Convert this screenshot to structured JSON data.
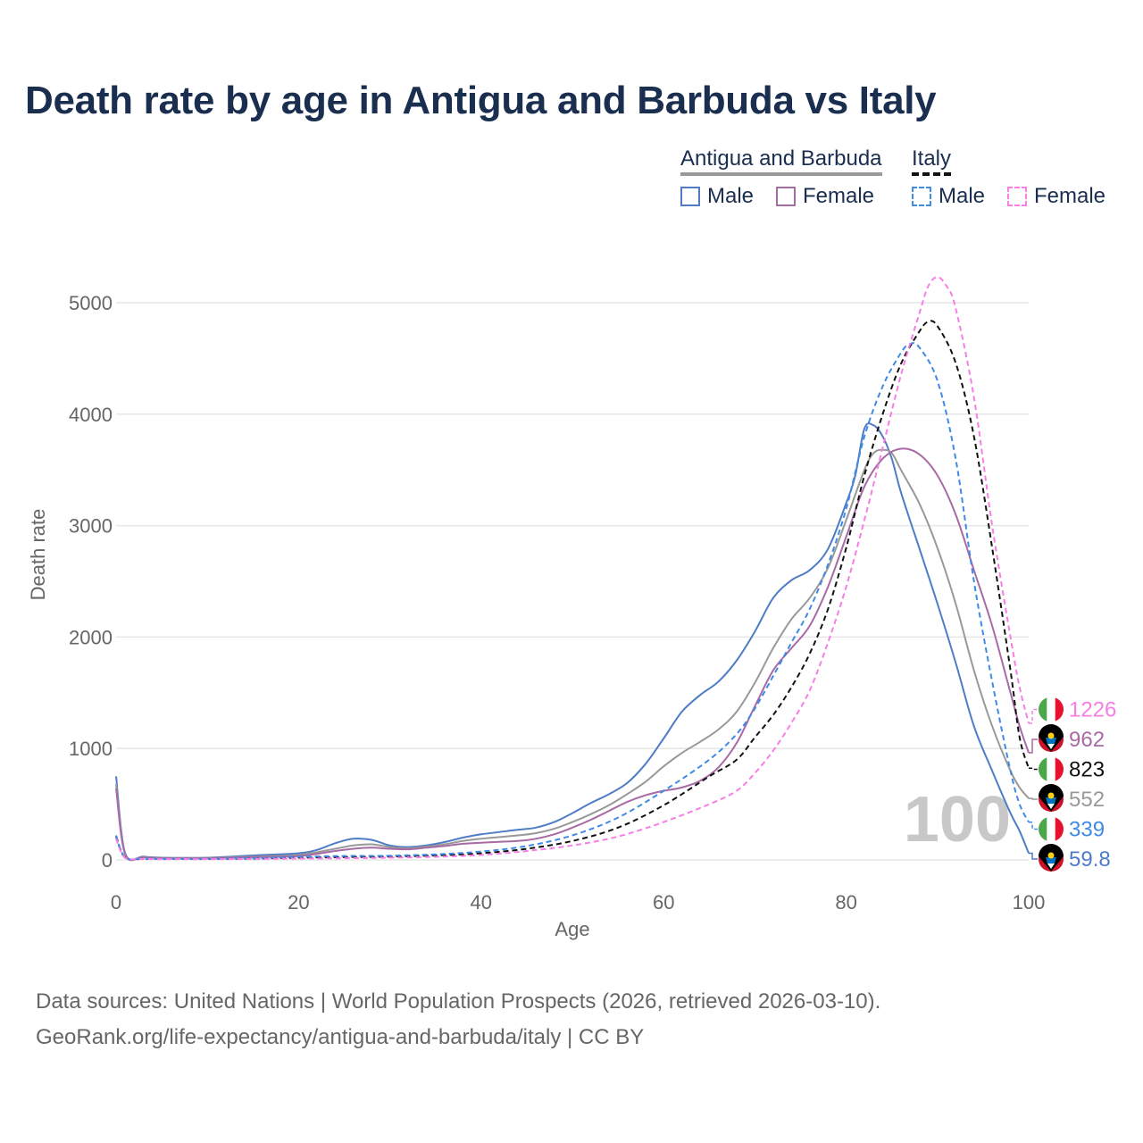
{
  "title": "Death rate by age in Antigua and Barbuda vs Italy",
  "legend": {
    "groups": [
      {
        "name": "Antigua and Barbuda",
        "style": "solid",
        "color": "#999999",
        "items": [
          {
            "label": "Male",
            "color": "#4e7cc6"
          },
          {
            "label": "Female",
            "color": "#a86aa4"
          }
        ]
      },
      {
        "name": "Italy",
        "style": "dashed",
        "color": "#111111",
        "items": [
          {
            "label": "Male",
            "color": "#3f8ae6"
          },
          {
            "label": "Female",
            "color": "#f77ee5"
          }
        ]
      }
    ]
  },
  "footer": {
    "line1": "Data sources: United Nations | World Population Prospects (2026, retrieved 2026-03-10).",
    "line2": "GeoRank.org/life-expectancy/antigua-and-barbuda/italy | CC BY"
  },
  "chart_data": {
    "type": "line",
    "title": "Death rate by age in Antigua and Barbuda vs Italy",
    "xlabel": "Age",
    "ylabel": "Death rate",
    "xlim": [
      0,
      100
    ],
    "ylim": [
      0,
      5000
    ],
    "xticks": [
      0,
      20,
      40,
      60,
      80,
      100
    ],
    "yticks": [
      0,
      1000,
      2000,
      3000,
      4000,
      5000
    ],
    "grid": "horizontal",
    "watermark": "100",
    "series": [
      {
        "name": "Antigua and Barbuda Male",
        "color": "#4e7cc6",
        "dash": false,
        "end_label": "59.8",
        "flag": "antigua",
        "points": [
          [
            0,
            750
          ],
          [
            1,
            60
          ],
          [
            3,
            30
          ],
          [
            5,
            20
          ],
          [
            10,
            20
          ],
          [
            15,
            40
          ],
          [
            20,
            60
          ],
          [
            22,
            90
          ],
          [
            24,
            150
          ],
          [
            26,
            190
          ],
          [
            28,
            180
          ],
          [
            30,
            130
          ],
          [
            32,
            115
          ],
          [
            34,
            130
          ],
          [
            36,
            160
          ],
          [
            38,
            200
          ],
          [
            40,
            230
          ],
          [
            44,
            270
          ],
          [
            46,
            290
          ],
          [
            48,
            340
          ],
          [
            50,
            420
          ],
          [
            52,
            510
          ],
          [
            54,
            590
          ],
          [
            56,
            690
          ],
          [
            58,
            860
          ],
          [
            60,
            1090
          ],
          [
            62,
            1330
          ],
          [
            64,
            1480
          ],
          [
            66,
            1600
          ],
          [
            68,
            1790
          ],
          [
            70,
            2050
          ],
          [
            72,
            2350
          ],
          [
            74,
            2510
          ],
          [
            76,
            2600
          ],
          [
            78,
            2790
          ],
          [
            80,
            3200
          ],
          [
            81,
            3450
          ],
          [
            82,
            3870
          ],
          [
            83,
            3900
          ],
          [
            84,
            3800
          ],
          [
            85,
            3600
          ],
          [
            86,
            3300
          ],
          [
            88,
            2800
          ],
          [
            90,
            2300
          ],
          [
            92,
            1770
          ],
          [
            94,
            1200
          ],
          [
            96,
            800
          ],
          [
            98,
            420
          ],
          [
            99,
            260
          ],
          [
            100,
            59.8
          ]
        ]
      },
      {
        "name": "Antigua and Barbuda Both",
        "color": "#999999",
        "dash": false,
        "end_label": "552",
        "flag": "antigua",
        "points": [
          [
            0,
            680
          ],
          [
            1,
            55
          ],
          [
            3,
            25
          ],
          [
            5,
            18
          ],
          [
            10,
            18
          ],
          [
            15,
            30
          ],
          [
            20,
            45
          ],
          [
            24,
            100
          ],
          [
            26,
            130
          ],
          [
            28,
            140
          ],
          [
            30,
            115
          ],
          [
            32,
            105
          ],
          [
            34,
            120
          ],
          [
            36,
            140
          ],
          [
            38,
            170
          ],
          [
            40,
            190
          ],
          [
            44,
            220
          ],
          [
            46,
            240
          ],
          [
            48,
            280
          ],
          [
            50,
            340
          ],
          [
            52,
            410
          ],
          [
            54,
            490
          ],
          [
            56,
            590
          ],
          [
            58,
            700
          ],
          [
            60,
            840
          ],
          [
            62,
            960
          ],
          [
            64,
            1060
          ],
          [
            66,
            1170
          ],
          [
            68,
            1330
          ],
          [
            70,
            1590
          ],
          [
            72,
            1900
          ],
          [
            74,
            2160
          ],
          [
            76,
            2350
          ],
          [
            78,
            2620
          ],
          [
            80,
            3050
          ],
          [
            82,
            3500
          ],
          [
            83,
            3650
          ],
          [
            84,
            3680
          ],
          [
            85,
            3650
          ],
          [
            86,
            3500
          ],
          [
            88,
            3200
          ],
          [
            90,
            2800
          ],
          [
            92,
            2300
          ],
          [
            94,
            1700
          ],
          [
            96,
            1200
          ],
          [
            98,
            800
          ],
          [
            99,
            650
          ],
          [
            100,
            552
          ]
        ]
      },
      {
        "name": "Antigua and Barbuda Female",
        "color": "#a86aa4",
        "dash": false,
        "end_label": "962",
        "flag": "antigua",
        "points": [
          [
            0,
            640
          ],
          [
            1,
            50
          ],
          [
            3,
            22
          ],
          [
            5,
            16
          ],
          [
            10,
            16
          ],
          [
            15,
            25
          ],
          [
            20,
            35
          ],
          [
            24,
            80
          ],
          [
            26,
            100
          ],
          [
            28,
            110
          ],
          [
            30,
            100
          ],
          [
            32,
            95
          ],
          [
            34,
            110
          ],
          [
            36,
            125
          ],
          [
            38,
            145
          ],
          [
            40,
            155
          ],
          [
            44,
            170
          ],
          [
            46,
            190
          ],
          [
            48,
            230
          ],
          [
            50,
            290
          ],
          [
            52,
            360
          ],
          [
            54,
            440
          ],
          [
            56,
            520
          ],
          [
            58,
            580
          ],
          [
            60,
            620
          ],
          [
            62,
            650
          ],
          [
            64,
            710
          ],
          [
            66,
            830
          ],
          [
            68,
            1050
          ],
          [
            70,
            1380
          ],
          [
            72,
            1700
          ],
          [
            74,
            1900
          ],
          [
            76,
            2100
          ],
          [
            78,
            2450
          ],
          [
            80,
            2900
          ],
          [
            82,
            3350
          ],
          [
            84,
            3600
          ],
          [
            86,
            3690
          ],
          [
            88,
            3640
          ],
          [
            90,
            3450
          ],
          [
            92,
            3100
          ],
          [
            94,
            2600
          ],
          [
            96,
            2100
          ],
          [
            98,
            1500
          ],
          [
            99,
            1200
          ],
          [
            100,
            962
          ]
        ]
      },
      {
        "name": "Italy Both",
        "color": "#111111",
        "dash": true,
        "end_label": "823",
        "flag": "italy",
        "points": [
          [
            0,
            210
          ],
          [
            1,
            20
          ],
          [
            3,
            10
          ],
          [
            5,
            8
          ],
          [
            10,
            8
          ],
          [
            15,
            12
          ],
          [
            20,
            20
          ],
          [
            25,
            25
          ],
          [
            30,
            30
          ],
          [
            35,
            40
          ],
          [
            40,
            60
          ],
          [
            45,
            100
          ],
          [
            50,
            170
          ],
          [
            55,
            290
          ],
          [
            60,
            490
          ],
          [
            65,
            750
          ],
          [
            68,
            900
          ],
          [
            70,
            1100
          ],
          [
            72,
            1300
          ],
          [
            74,
            1550
          ],
          [
            76,
            1850
          ],
          [
            78,
            2250
          ],
          [
            80,
            2800
          ],
          [
            82,
            3450
          ],
          [
            84,
            4000
          ],
          [
            86,
            4450
          ],
          [
            88,
            4740
          ],
          [
            89,
            4830
          ],
          [
            90,
            4790
          ],
          [
            92,
            4460
          ],
          [
            94,
            3800
          ],
          [
            96,
            2800
          ],
          [
            98,
            1700
          ],
          [
            99,
            1100
          ],
          [
            100,
            823
          ]
        ]
      },
      {
        "name": "Italy Male",
        "color": "#3f8ae6",
        "dash": true,
        "end_label": "339",
        "flag": "italy",
        "points": [
          [
            0,
            220
          ],
          [
            1,
            22
          ],
          [
            3,
            12
          ],
          [
            5,
            9
          ],
          [
            10,
            10
          ],
          [
            15,
            15
          ],
          [
            20,
            28
          ],
          [
            25,
            35
          ],
          [
            30,
            38
          ],
          [
            35,
            50
          ],
          [
            40,
            75
          ],
          [
            45,
            125
          ],
          [
            50,
            220
          ],
          [
            55,
            380
          ],
          [
            60,
            620
          ],
          [
            65,
            900
          ],
          [
            68,
            1130
          ],
          [
            70,
            1360
          ],
          [
            72,
            1650
          ],
          [
            74,
            1950
          ],
          [
            76,
            2250
          ],
          [
            78,
            2650
          ],
          [
            80,
            3150
          ],
          [
            82,
            3800
          ],
          [
            84,
            4250
          ],
          [
            86,
            4550
          ],
          [
            87,
            4630
          ],
          [
            88,
            4600
          ],
          [
            90,
            4300
          ],
          [
            92,
            3600
          ],
          [
            94,
            2500
          ],
          [
            96,
            1600
          ],
          [
            98,
            800
          ],
          [
            99,
            500
          ],
          [
            100,
            339
          ]
        ]
      },
      {
        "name": "Italy Female",
        "color": "#f77ee5",
        "dash": true,
        "end_label": "1226",
        "flag": "italy",
        "points": [
          [
            0,
            190
          ],
          [
            1,
            18
          ],
          [
            3,
            9
          ],
          [
            5,
            7
          ],
          [
            10,
            7
          ],
          [
            15,
            9
          ],
          [
            20,
            12
          ],
          [
            25,
            15
          ],
          [
            30,
            20
          ],
          [
            35,
            28
          ],
          [
            40,
            45
          ],
          [
            45,
            80
          ],
          [
            50,
            130
          ],
          [
            55,
            210
          ],
          [
            60,
            340
          ],
          [
            65,
            500
          ],
          [
            68,
            620
          ],
          [
            70,
            780
          ],
          [
            72,
            980
          ],
          [
            74,
            1230
          ],
          [
            76,
            1520
          ],
          [
            78,
            1950
          ],
          [
            80,
            2450
          ],
          [
            82,
            3050
          ],
          [
            84,
            3700
          ],
          [
            86,
            4350
          ],
          [
            88,
            4900
          ],
          [
            89,
            5150
          ],
          [
            90,
            5230
          ],
          [
            91,
            5150
          ],
          [
            92,
            4950
          ],
          [
            94,
            4150
          ],
          [
            96,
            3000
          ],
          [
            98,
            2000
          ],
          [
            99,
            1550
          ],
          [
            100,
            1226
          ]
        ]
      }
    ]
  }
}
